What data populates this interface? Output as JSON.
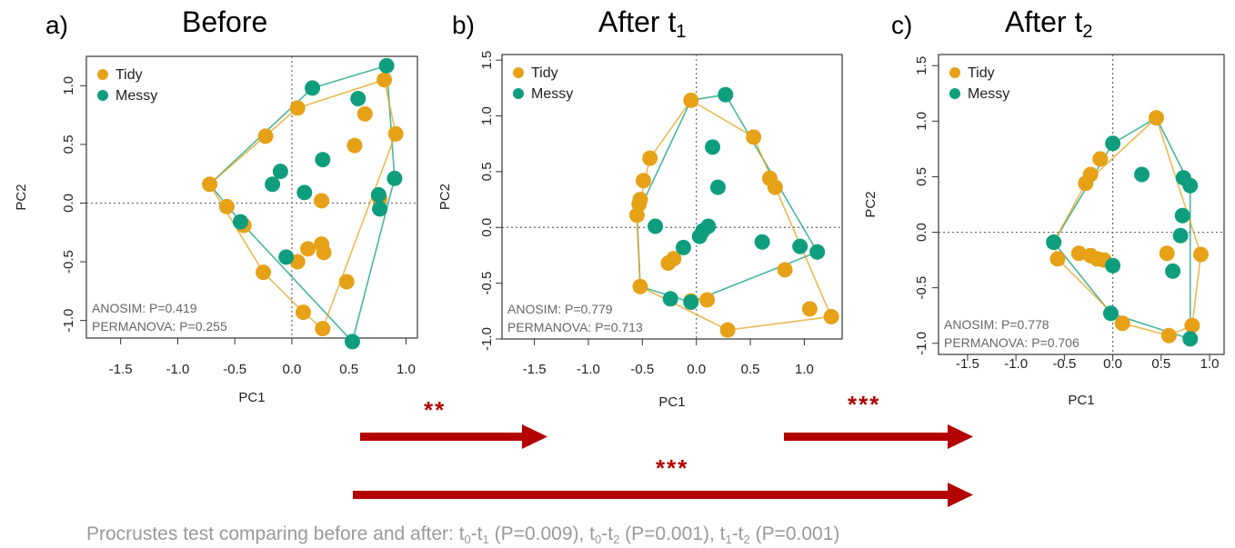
{
  "colors": {
    "tidy": "#E6A117",
    "messy": "#0E9E7E",
    "arrow": "#B30000",
    "stat": "#666666",
    "footer": "#999999"
  },
  "panels": [
    {
      "letter": "a)",
      "title": "Before",
      "title_sub": ""
    },
    {
      "letter": "b)",
      "title": "After t",
      "title_sub": "1"
    },
    {
      "letter": "c)",
      "title": "After t",
      "title_sub": "2"
    }
  ],
  "arrows": [
    {
      "stars": "**"
    },
    {
      "stars": "***"
    },
    {
      "stars": "***"
    }
  ],
  "footer": {
    "prefix": "Procrustes test comparing before and after: t",
    "s1": "0",
    "mid1": "-t",
    "s2": "1",
    "p1": " (P=0.009), t",
    "s3": "0",
    "mid2": "-t",
    "s4": "2",
    "p2": " (P=0.001), t",
    "s5": "1",
    "mid3": "-t",
    "s6": "2",
    "p3": " (P=0.001)"
  },
  "chart_data": [
    {
      "type": "scatter",
      "title": "Before",
      "xlabel": "PC1",
      "ylabel": "PC2",
      "xlim": [
        -1.8,
        1.1
      ],
      "ylim": [
        -1.15,
        1.25
      ],
      "xticks": [
        -1.5,
        -1.0,
        -0.5,
        0.0,
        0.5,
        1.0
      ],
      "yticks": [
        -1.0,
        -0.5,
        0.0,
        0.5,
        1.0
      ],
      "grid": false,
      "legend": "top-left",
      "legend_entries": [
        "Tidy",
        "Messy"
      ],
      "annotations": [
        "ANOSIM:  P=0.419",
        "PERMANOVA: P=0.255"
      ],
      "series": [
        {
          "name": "Tidy",
          "color": "#E6A117",
          "points": [
            [
              -0.72,
              0.16
            ],
            [
              -0.57,
              -0.03
            ],
            [
              -0.42,
              -0.19
            ],
            [
              -0.23,
              0.57
            ],
            [
              -0.25,
              -0.59
            ],
            [
              0.05,
              0.81
            ],
            [
              0.05,
              -0.5
            ],
            [
              0.1,
              -0.93
            ],
            [
              0.14,
              -0.39
            ],
            [
              0.26,
              -0.35
            ],
            [
              0.28,
              -0.42
            ],
            [
              0.26,
              0.02
            ],
            [
              0.27,
              -1.07
            ],
            [
              0.48,
              -0.67
            ],
            [
              0.55,
              0.49
            ],
            [
              0.64,
              0.76
            ],
            [
              0.81,
              1.05
            ],
            [
              0.91,
              0.59
            ],
            [
              0.77,
              0.04
            ]
          ],
          "hull": [
            [
              -0.72,
              0.16
            ],
            [
              0.05,
              0.81
            ],
            [
              0.81,
              1.05
            ],
            [
              0.91,
              0.59
            ],
            [
              0.27,
              -1.07
            ],
            [
              0.1,
              -0.93
            ],
            [
              -0.25,
              -0.59
            ],
            [
              -0.72,
              0.16
            ]
          ]
        },
        {
          "name": "Messy",
          "color": "#0E9E7E",
          "points": [
            [
              -0.45,
              -0.16
            ],
            [
              -0.17,
              0.16
            ],
            [
              -0.1,
              0.27
            ],
            [
              -0.05,
              -0.46
            ],
            [
              0.11,
              0.09
            ],
            [
              0.18,
              0.98
            ],
            [
              0.27,
              0.37
            ],
            [
              0.53,
              -1.18
            ],
            [
              0.58,
              0.89
            ],
            [
              0.76,
              0.07
            ],
            [
              0.77,
              -0.05
            ],
            [
              0.83,
              1.17
            ],
            [
              0.9,
              0.21
            ]
          ],
          "hull": [
            [
              -0.72,
              0.16
            ],
            [
              0.18,
              0.98
            ],
            [
              0.83,
              1.17
            ],
            [
              0.9,
              0.21
            ],
            [
              0.53,
              -1.18
            ],
            [
              -0.45,
              -0.16
            ],
            [
              -0.72,
              0.16
            ]
          ]
        }
      ]
    },
    {
      "type": "scatter",
      "title": "After t1",
      "xlabel": "PC1",
      "ylabel": "PC2",
      "xlim": [
        -1.8,
        1.35
      ],
      "ylim": [
        -1.0,
        1.55
      ],
      "xticks": [
        -1.5,
        -1.0,
        -0.5,
        0.0,
        0.5,
        1.0
      ],
      "yticks": [
        -1.0,
        -0.5,
        0.0,
        0.5,
        1.0,
        1.5
      ],
      "grid": false,
      "legend": "top-left",
      "legend_entries": [
        "Tidy",
        "Messy"
      ],
      "annotations": [
        "ANOSIM:  P=0.779",
        "PERMANOVA: P=0.713"
      ],
      "series": [
        {
          "name": "Tidy",
          "color": "#E6A117",
          "points": [
            [
              -0.55,
              0.11
            ],
            [
              -0.53,
              0.21
            ],
            [
              -0.52,
              0.25
            ],
            [
              -0.52,
              -0.53
            ],
            [
              -0.49,
              0.42
            ],
            [
              -0.43,
              0.62
            ],
            [
              -0.26,
              -0.32
            ],
            [
              -0.21,
              -0.28
            ],
            [
              -0.05,
              -0.66
            ],
            [
              0.1,
              -0.65
            ],
            [
              -0.05,
              1.14
            ],
            [
              0.29,
              -0.92
            ],
            [
              0.53,
              0.81
            ],
            [
              0.68,
              0.44
            ],
            [
              0.73,
              0.36
            ],
            [
              0.82,
              -0.38
            ],
            [
              1.05,
              -0.73
            ],
            [
              1.25,
              -0.8
            ]
          ],
          "hull": [
            [
              -0.55,
              0.11
            ],
            [
              -0.43,
              0.62
            ],
            [
              -0.05,
              1.14
            ],
            [
              0.53,
              0.81
            ],
            [
              1.25,
              -0.8
            ],
            [
              0.29,
              -0.92
            ],
            [
              -0.52,
              -0.53
            ],
            [
              -0.55,
              0.11
            ]
          ]
        },
        {
          "name": "Messy",
          "color": "#0E9E7E",
          "points": [
            [
              -0.38,
              0.01
            ],
            [
              -0.24,
              -0.64
            ],
            [
              -0.12,
              -0.18
            ],
            [
              -0.05,
              -0.67
            ],
            [
              0.03,
              -0.08
            ],
            [
              0.06,
              -0.03
            ],
            [
              0.11,
              0.01
            ],
            [
              0.15,
              0.72
            ],
            [
              0.2,
              0.36
            ],
            [
              0.27,
              1.19
            ],
            [
              0.61,
              -0.13
            ],
            [
              0.96,
              -0.17
            ],
            [
              1.12,
              -0.22
            ]
          ],
          "hull": [
            [
              -0.05,
              1.14
            ],
            [
              0.27,
              1.19
            ],
            [
              1.12,
              -0.22
            ],
            [
              -0.05,
              -0.67
            ],
            [
              -0.52,
              -0.53
            ],
            [
              -0.55,
              0.11
            ],
            [
              -0.05,
              1.14
            ]
          ]
        }
      ]
    },
    {
      "type": "scatter",
      "title": "After t2",
      "xlabel": "PC1",
      "ylabel": "PC2",
      "xlim": [
        -1.8,
        1.15
      ],
      "ylim": [
        -1.1,
        1.6
      ],
      "xticks": [
        -1.5,
        -1.0,
        -0.5,
        0.0,
        0.5,
        1.0
      ],
      "yticks": [
        -1.0,
        -0.5,
        0.0,
        0.5,
        1.0,
        1.5
      ],
      "grid": false,
      "legend": "top-left",
      "legend_entries": [
        "Tidy",
        "Messy"
      ],
      "annotations": [
        "ANOSIM:  P=0.778",
        "PERMANOVA: P=0.706"
      ],
      "series": [
        {
          "name": "Tidy",
          "color": "#E6A117",
          "points": [
            [
              -0.61,
              -0.09
            ],
            [
              -0.57,
              -0.24
            ],
            [
              -0.35,
              -0.19
            ],
            [
              -0.28,
              0.44
            ],
            [
              -0.23,
              0.52
            ],
            [
              -0.23,
              -0.21
            ],
            [
              -0.16,
              -0.24
            ],
            [
              -0.09,
              -0.25
            ],
            [
              -0.13,
              0.66
            ],
            [
              0.1,
              -0.82
            ],
            [
              0.45,
              1.03
            ],
            [
              0.56,
              -0.19
            ],
            [
              0.58,
              -0.93
            ],
            [
              0.82,
              -0.84
            ],
            [
              0.91,
              -0.2
            ]
          ],
          "hull": [
            [
              -0.61,
              -0.09
            ],
            [
              -0.28,
              0.44
            ],
            [
              0.45,
              1.03
            ],
            [
              0.91,
              -0.2
            ],
            [
              0.82,
              -0.84
            ],
            [
              0.58,
              -0.93
            ],
            [
              0.1,
              -0.82
            ],
            [
              -0.57,
              -0.24
            ],
            [
              -0.61,
              -0.09
            ]
          ]
        },
        {
          "name": "Messy",
          "color": "#0E9E7E",
          "points": [
            [
              -0.61,
              -0.09
            ],
            [
              -0.02,
              -0.73
            ],
            [
              0.0,
              -0.3
            ],
            [
              0.0,
              0.8
            ],
            [
              0.3,
              0.52
            ],
            [
              0.62,
              -0.35
            ],
            [
              0.7,
              -0.03
            ],
            [
              0.72,
              0.15
            ],
            [
              0.73,
              0.49
            ],
            [
              0.8,
              0.42
            ],
            [
              0.8,
              -0.96
            ]
          ],
          "hull": [
            [
              -0.61,
              -0.09
            ],
            [
              0.0,
              0.8
            ],
            [
              0.45,
              1.03
            ],
            [
              0.8,
              0.42
            ],
            [
              0.8,
              -0.96
            ],
            [
              -0.02,
              -0.73
            ],
            [
              -0.61,
              -0.09
            ]
          ]
        }
      ]
    }
  ]
}
